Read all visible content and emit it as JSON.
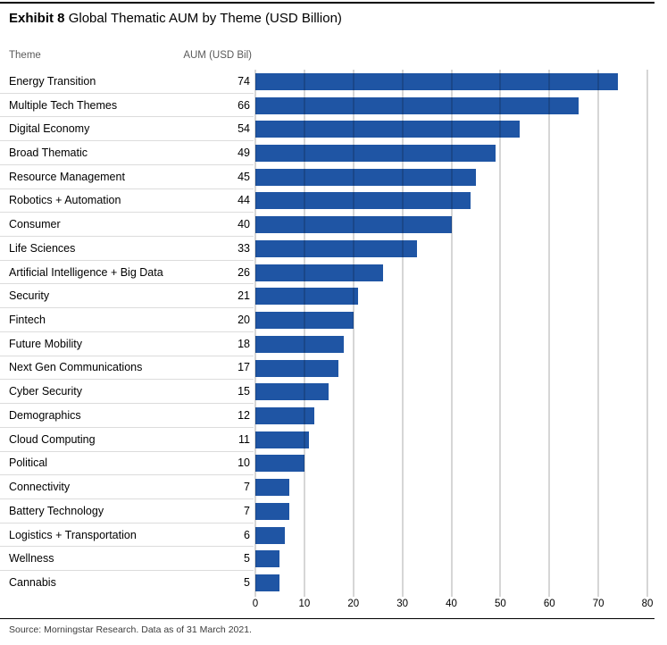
{
  "exhibit": {
    "label": "Exhibit 8",
    "title": "Global Thematic AUM by Theme (USD Billion)"
  },
  "table_headers": {
    "theme": "Theme",
    "aum": "AUM (USD Bil)"
  },
  "chart_data": {
    "type": "bar",
    "orientation": "horizontal",
    "title": "Exhibit 8 Global Thematic AUM by Theme (USD Billion)",
    "value_label": "AUM (USD Bil)",
    "categories": [
      "Energy Transition",
      "Multiple Tech Themes",
      "Digital Economy",
      "Broad Thematic",
      "Resource Management",
      "Robotics + Automation",
      "Consumer",
      "Life Sciences",
      "Artificial Intelligence + Big Data",
      "Security",
      "Fintech",
      "Future Mobility",
      "Next Gen Communications",
      "Cyber Security",
      "Demographics",
      "Cloud Computing",
      "Political",
      "Connectivity",
      "Battery Technology",
      "Logistics + Transportation",
      "Wellness",
      "Cannabis"
    ],
    "values": [
      74,
      66,
      54,
      49,
      45,
      44,
      40,
      33,
      26,
      21,
      20,
      18,
      17,
      15,
      12,
      11,
      10,
      7,
      7,
      6,
      5,
      5
    ],
    "xlim": [
      0,
      80
    ],
    "x_ticks": [
      0,
      10,
      20,
      30,
      40,
      50,
      60,
      70,
      80
    ],
    "bar_color": "#1f55a4",
    "grid": true,
    "legend": null
  },
  "footer": {
    "source": "Source: Morningstar Research. Data as of 31 March 2021."
  }
}
